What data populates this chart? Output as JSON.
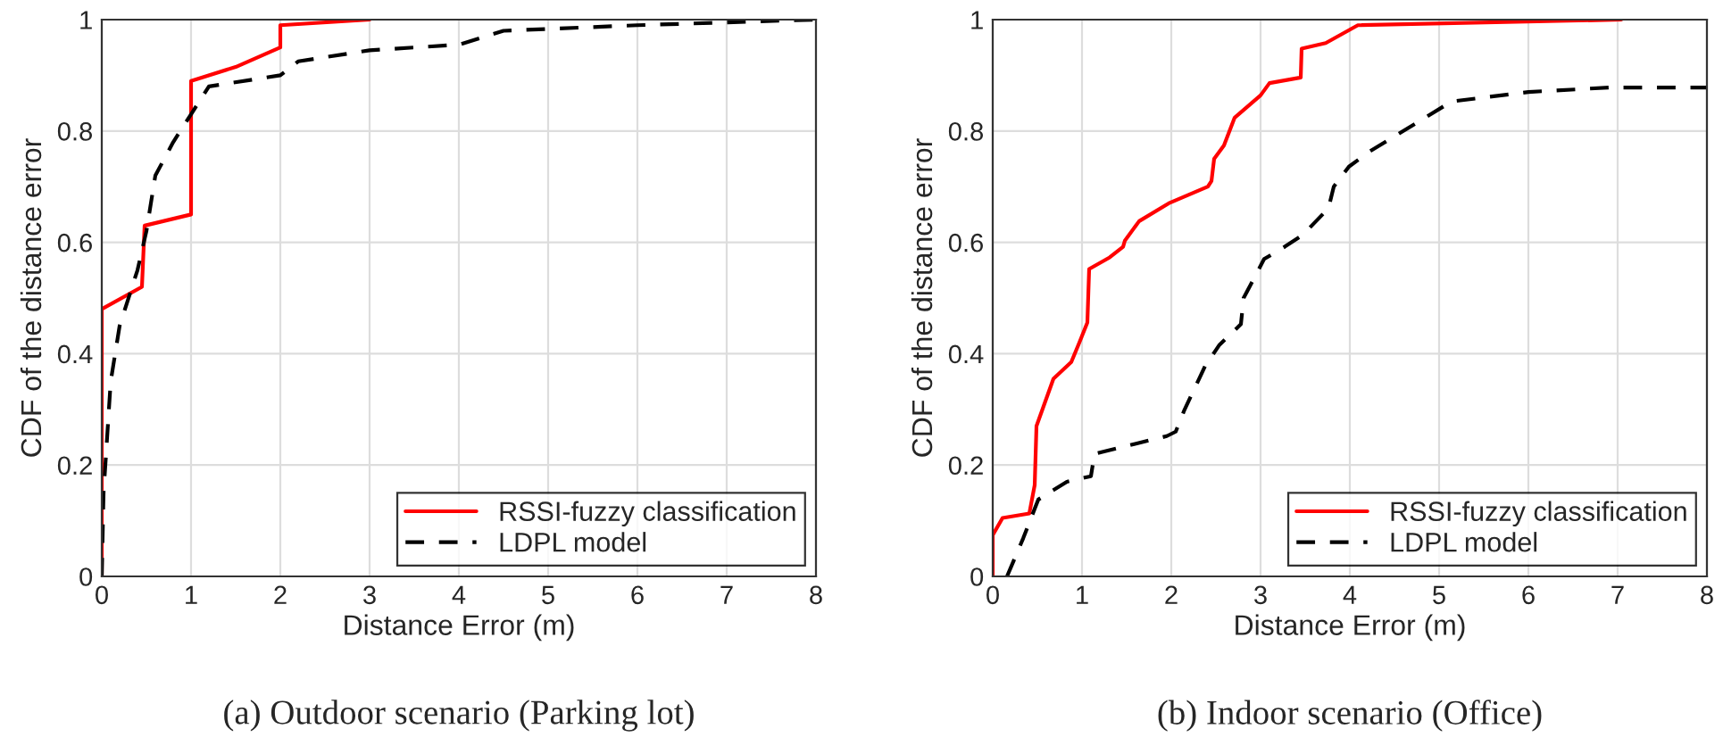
{
  "chart_data": [
    {
      "type": "line",
      "title": "(a) Outdoor scenario (Parking lot)",
      "xlabel": "Distance Error (m)",
      "ylabel": "CDF of the distance error",
      "xlim": [
        0,
        8
      ],
      "ylim": [
        0,
        1
      ],
      "xticks": [
        0,
        1,
        2,
        3,
        4,
        5,
        6,
        7,
        8
      ],
      "yticks": [
        0,
        0.2,
        0.4,
        0.6,
        0.8,
        1
      ],
      "grid": true,
      "legend": "bottom right",
      "series": [
        {
          "name": "RSSI-fuzzy classification",
          "color": "#ff0000",
          "line_style": "solid",
          "x": [
            0,
            0,
            0.45,
            0.48,
            1,
            1,
            1.5,
            2,
            2,
            3
          ],
          "values": [
            0,
            0.48,
            0.52,
            0.63,
            0.65,
            0.89,
            0.915,
            0.95,
            0.99,
            1.0
          ]
        },
        {
          "name": "LDPL model",
          "color": "#000000",
          "line_style": "dashed",
          "x": [
            0,
            0.02,
            0.1,
            0.2,
            0.4,
            0.5,
            0.6,
            0.8,
            1,
            1.2,
            2,
            2.2,
            3,
            4,
            4.5,
            6,
            8
          ],
          "values": [
            0,
            0.15,
            0.35,
            0.45,
            0.55,
            0.62,
            0.72,
            0.78,
            0.83,
            0.88,
            0.9,
            0.925,
            0.945,
            0.955,
            0.98,
            0.99,
            1.0
          ]
        }
      ]
    },
    {
      "type": "line",
      "title": "(b) Indoor scenario (Office)",
      "xlabel": "Distance Error (m)",
      "ylabel": "CDF of the distance error",
      "xlim": [
        0,
        8
      ],
      "ylim": [
        0,
        1
      ],
      "xticks": [
        0,
        1,
        2,
        3,
        4,
        5,
        6,
        7,
        8
      ],
      "yticks": [
        0,
        0.2,
        0.4,
        0.6,
        0.8,
        1
      ],
      "grid": true,
      "legend": "bottom right",
      "series": [
        {
          "name": "RSSI-fuzzy classification",
          "color": "#ff0000",
          "line_style": "solid",
          "x": [
            0,
            0,
            0.11,
            0.41,
            0.47,
            0.49,
            0.68,
            0.88,
            0.97,
            1.06,
            1.08,
            1.31,
            1.46,
            1.48,
            1.64,
            1.97,
            2.41,
            2.45,
            2.48,
            2.59,
            2.71,
            3.0,
            3.1,
            3.45,
            3.46,
            3.73,
            4.09,
            7.04
          ],
          "values": [
            0,
            0.074,
            0.105,
            0.113,
            0.164,
            0.27,
            0.355,
            0.385,
            0.42,
            0.456,
            0.552,
            0.573,
            0.592,
            0.603,
            0.638,
            0.67,
            0.7,
            0.71,
            0.75,
            0.774,
            0.824,
            0.864,
            0.886,
            0.896,
            0.948,
            0.958,
            0.99,
            1.0
          ]
        },
        {
          "name": "LDPL model",
          "color": "#000000",
          "line_style": "dashed",
          "x": [
            0.16,
            0.34,
            0.51,
            0.83,
            1.1,
            1.14,
            1.95,
            2.05,
            2.15,
            2.38,
            2.54,
            2.78,
            2.81,
            3.04,
            3.27,
            3.47,
            3.76,
            3.82,
            3.99,
            4.22,
            5.14,
            6.0,
            6.9,
            8
          ],
          "values": [
            0,
            0.068,
            0.138,
            0.17,
            0.18,
            0.22,
            0.252,
            0.26,
            0.3,
            0.378,
            0.416,
            0.453,
            0.5,
            0.57,
            0.592,
            0.613,
            0.661,
            0.7,
            0.736,
            0.763,
            0.853,
            0.87,
            0.878,
            0.878
          ]
        }
      ]
    }
  ]
}
